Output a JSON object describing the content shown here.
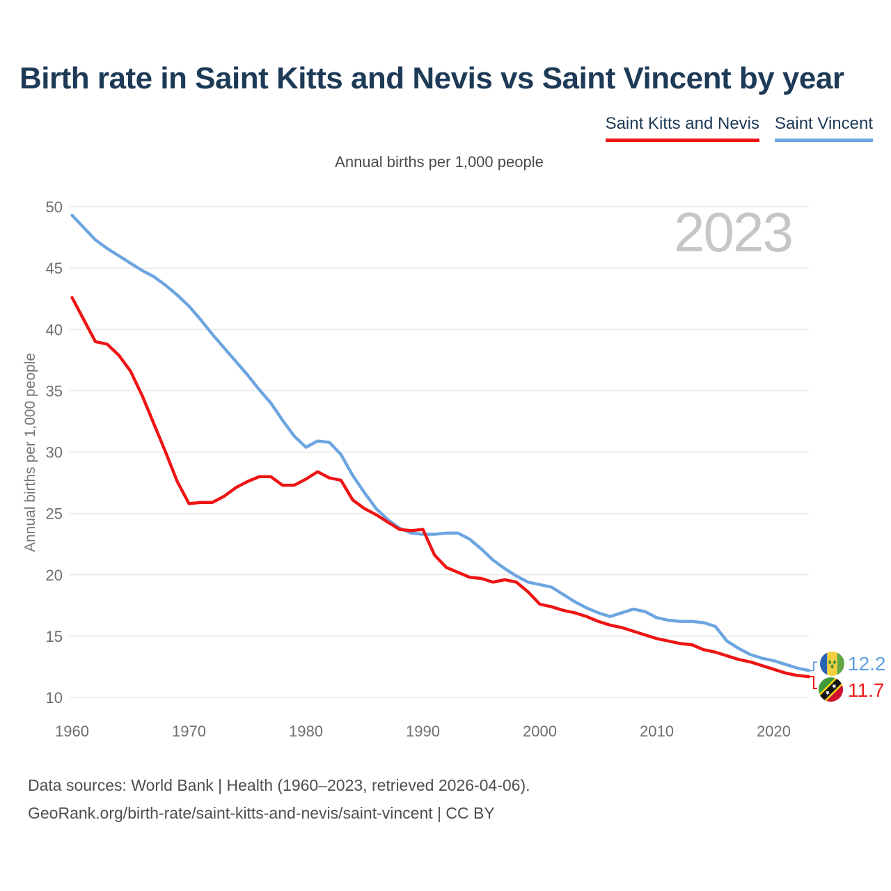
{
  "title": "Birth rate in Saint Kitts and Nevis vs Saint Vincent by year",
  "subtitle": "Annual births per 1,000 people",
  "y_axis_title": "Annual births per 1,000 people",
  "watermark_year": "2023",
  "legend": [
    {
      "label": "Saint Kitts and Nevis",
      "color": "#ee1414"
    },
    {
      "label": "Saint Vincent",
      "color": "#6ca5e0"
    }
  ],
  "end_labels": [
    {
      "series": "Saint Vincent",
      "value": "12.2",
      "color": "#5d9ee0"
    },
    {
      "series": "Saint Kitts and Nevis",
      "value": "11.7",
      "color": "#f21b1b"
    }
  ],
  "footer": {
    "line1": "Data sources: World Bank | Health (1960–2023, retrieved 2026-04-06).",
    "line2": "GeoRank.org/birth-rate/saint-kitts-and-nevis/saint-vincent | CC BY"
  },
  "colors": {
    "title_navy": "#1d3a57",
    "grid": "#e8e8e8",
    "tick_text": "#6e6e6e",
    "red_series": "#ee1414",
    "blue_series": "#6ca5e0",
    "watermark": "#c6c6c6"
  },
  "chart_data": {
    "type": "line",
    "title": "Birth rate in Saint Kitts and Nevis vs Saint Vincent by year",
    "ylabel": "Annual births per 1,000 people",
    "x_start": 1960,
    "x_end": 2023,
    "x_ticks": [
      1960,
      1970,
      1980,
      1990,
      2000,
      2010,
      2020
    ],
    "y_ticks": [
      10,
      15,
      20,
      25,
      30,
      35,
      40,
      45,
      50
    ],
    "ylim": [
      10,
      50
    ],
    "grid": true,
    "legend_position": "top-right",
    "series": [
      {
        "id": "saint-vincent",
        "name": "Saint Vincent",
        "color": "#6ca5e0",
        "end_label": "12.2",
        "label_dy": -12,
        "values": [
          49.3,
          48.3,
          47.3,
          46.6,
          46.0,
          45.4,
          44.8,
          44.3,
          43.6,
          42.8,
          41.9,
          40.8,
          39.6,
          38.5,
          37.4,
          36.3,
          35.1,
          34.0,
          32.6,
          31.3,
          30.4,
          30.9,
          30.8,
          29.8,
          28.1,
          26.7,
          25.4,
          24.5,
          23.8,
          23.4,
          23.3,
          23.3,
          23.4,
          23.4,
          22.9,
          22.1,
          21.2,
          20.5,
          19.9,
          19.4,
          19.2,
          19.0,
          18.4,
          17.8,
          17.3,
          16.9,
          16.6,
          16.9,
          17.2,
          17.0,
          16.5,
          16.3,
          16.2,
          16.2,
          16.1,
          15.8,
          14.6,
          14.0,
          13.5,
          13.2,
          13.0,
          12.7,
          12.4,
          12.2
        ]
      },
      {
        "id": "saint-kitts-and-nevis",
        "name": "Saint Kitts and Nevis",
        "color": "#ee1414",
        "end_label": "11.7",
        "label_dy": 17,
        "values": [
          42.6,
          40.8,
          39.0,
          38.8,
          37.9,
          36.6,
          34.6,
          32.3,
          30.0,
          27.6,
          25.8,
          25.9,
          25.9,
          26.4,
          27.1,
          27.6,
          28.0,
          28.0,
          27.3,
          27.3,
          27.8,
          28.4,
          27.9,
          27.7,
          26.1,
          25.4,
          24.9,
          24.3,
          23.7,
          23.6,
          23.7,
          21.6,
          20.6,
          20.2,
          19.8,
          19.7,
          19.4,
          19.6,
          19.4,
          18.6,
          17.6,
          17.4,
          17.1,
          16.9,
          16.6,
          16.2,
          15.9,
          15.7,
          15.4,
          15.1,
          14.8,
          14.6,
          14.4,
          14.3,
          13.9,
          13.7,
          13.4,
          13.1,
          12.9,
          12.6,
          12.3,
          12.0,
          11.8,
          11.7
        ]
      }
    ]
  }
}
